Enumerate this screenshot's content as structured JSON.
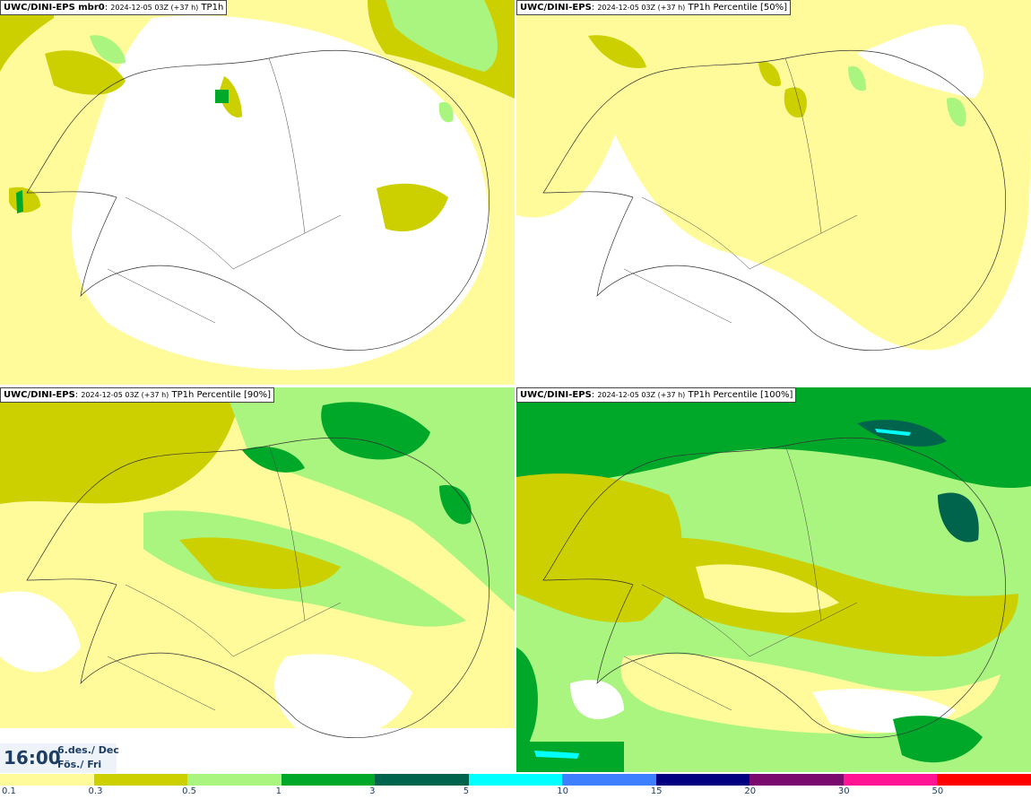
{
  "panels": [
    {
      "source": "UWC/DINI-EPS mbr0",
      "run": "2024-12-05 03Z (+37 h)",
      "field": "TP1h"
    },
    {
      "source": "UWC/DINI-EPS",
      "run": "2024-12-05 03Z (+37 h)",
      "field": "TP1h Percentile [50%]"
    },
    {
      "source": "UWC/DINI-EPS",
      "run": "2024-12-05 03Z (+37 h)",
      "field": "TP1h Percentile [90%]"
    },
    {
      "source": "UWC/DINI-EPS",
      "run": "2024-12-05 03Z (+37 h)",
      "field": "TP1h Percentile [100%]"
    }
  ],
  "valid_time": {
    "time": "16:00",
    "date_line1": "6.des./ Dec",
    "date_line2": "Fös./ Fri"
  },
  "legend": {
    "thresholds": [
      "0.1",
      "0.3",
      "0.5",
      "1",
      "3",
      "5",
      "10",
      "15",
      "20",
      "30",
      "50"
    ],
    "colors": [
      "#fffb9a",
      "#ccd000",
      "#a9f57f",
      "#00a82a",
      "#00644c",
      "#00ffff",
      "#3d7fff",
      "#000080",
      "#7a0a6e",
      "#ff1493",
      "#ff0000"
    ]
  }
}
